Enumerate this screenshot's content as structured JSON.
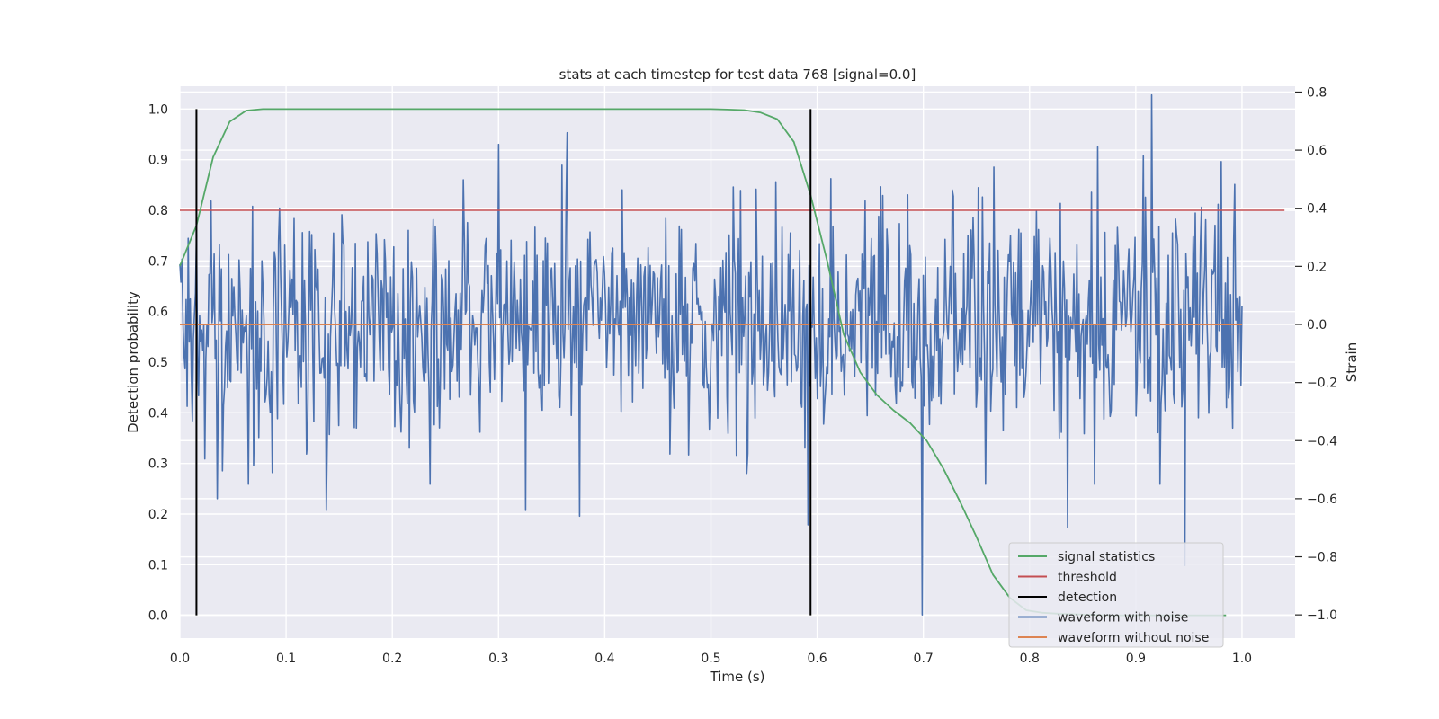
{
  "chart_data": {
    "type": "line",
    "title": "stats at each timestep for test data 768 [signal=0.0]",
    "xlabel": "Time (s)",
    "ylabel_left": "Detection probability",
    "ylabel_right": "Strain",
    "xlim": [
      0.0,
      1.05
    ],
    "ylim_left": [
      -0.045,
      1.045
    ],
    "ylim_right": [
      -1.08,
      0.82
    ],
    "x_ticks": [
      0.0,
      0.1,
      0.2,
      0.3,
      0.4,
      0.5,
      0.6,
      0.7,
      0.8,
      0.9,
      1.0
    ],
    "x_tick_labels": [
      "0.0",
      "0.1",
      "0.2",
      "0.3",
      "0.4",
      "0.5",
      "0.6",
      "0.7",
      "0.8",
      "0.9",
      "1.0"
    ],
    "y_left_ticks": [
      0.0,
      0.1,
      0.2,
      0.3,
      0.4,
      0.5,
      0.6,
      0.7,
      0.8,
      0.9,
      1.0
    ],
    "y_left_tick_labels": [
      "0.0",
      "0.1",
      "0.2",
      "0.3",
      "0.4",
      "0.5",
      "0.6",
      "0.7",
      "0.8",
      "0.9",
      "1.0"
    ],
    "y_right_ticks": [
      -1.0,
      -0.8,
      -0.6,
      -0.4,
      -0.2,
      0.0,
      0.2,
      0.4,
      0.6,
      0.8
    ],
    "y_right_tick_labels": [
      "−1.0",
      "−0.8",
      "−0.6",
      "−0.4",
      "−0.2",
      "0.0",
      "0.2",
      "0.4",
      "0.6",
      "0.8"
    ],
    "grid": true,
    "legend_position": "lower-right",
    "series": [
      {
        "name": "signal statistics",
        "color": "#55a868",
        "axis": "left",
        "x": [
          0.0,
          0.0156,
          0.0313,
          0.0469,
          0.0625,
          0.0781,
          0.0938,
          0.1094,
          0.125,
          0.2,
          0.3,
          0.4,
          0.5,
          0.5156,
          0.5313,
          0.5469,
          0.5625,
          0.5781,
          0.5938,
          0.6094,
          0.625,
          0.6406,
          0.6563,
          0.6719,
          0.6875,
          0.7031,
          0.7188,
          0.7344,
          0.75,
          0.7656,
          0.7813,
          0.7969,
          0.8125,
          0.8281,
          0.8438,
          0.8594,
          0.875,
          0.9,
          0.95,
          0.985
        ],
        "y": [
          0.69,
          0.77,
          0.905,
          0.975,
          0.997,
          1.0,
          1.0,
          1.0,
          1.0,
          1.0,
          1.0,
          1.0,
          1.0,
          0.999,
          0.998,
          0.993,
          0.98,
          0.935,
          0.83,
          0.7,
          0.555,
          0.48,
          0.435,
          0.405,
          0.38,
          0.345,
          0.29,
          0.225,
          0.155,
          0.08,
          0.035,
          0.01,
          0.005,
          0.003,
          0.002,
          0.001,
          0.0,
          0.0,
          0.0,
          0.0
        ]
      },
      {
        "name": "threshold",
        "color": "#c44e52",
        "axis": "left",
        "x": [
          0.0,
          1.04
        ],
        "y": [
          0.8,
          0.8
        ]
      },
      {
        "name": "detection",
        "color": "#000000",
        "axis": "left",
        "segments": [
          {
            "x": 0.0156,
            "y0": 0.0,
            "y1": 1.0
          },
          {
            "x": 0.5938,
            "y0": 0.0,
            "y1": 1.0
          }
        ]
      },
      {
        "name": "waveform with noise",
        "color": "#4c72b0",
        "axis": "right",
        "x_start": 0.0,
        "x_end": 1.0,
        "n_points": 1024,
        "std": 0.2,
        "range": [
          -1.0,
          0.8
        ],
        "extremes": [
          {
            "x": 0.699,
            "y": -1.0
          },
          {
            "x": 0.915,
            "y": 0.79
          },
          {
            "x": 0.946,
            "y": -0.83
          },
          {
            "x": 0.907,
            "y": 0.58
          },
          {
            "x": 0.365,
            "y": 0.66
          },
          {
            "x": 0.3,
            "y": 0.62
          },
          {
            "x": 0.138,
            "y": -0.64
          },
          {
            "x": 0.376,
            "y": -0.66
          },
          {
            "x": 0.836,
            "y": -0.7
          },
          {
            "x": 0.591,
            "y": -0.69
          },
          {
            "x": 0.035,
            "y": -0.6
          },
          {
            "x": 0.326,
            "y": -0.64
          }
        ]
      },
      {
        "name": "waveform without noise",
        "color": "#dd8452",
        "axis": "right",
        "x": [
          0.0,
          1.0
        ],
        "y": [
          0.0,
          0.0
        ]
      }
    ]
  }
}
